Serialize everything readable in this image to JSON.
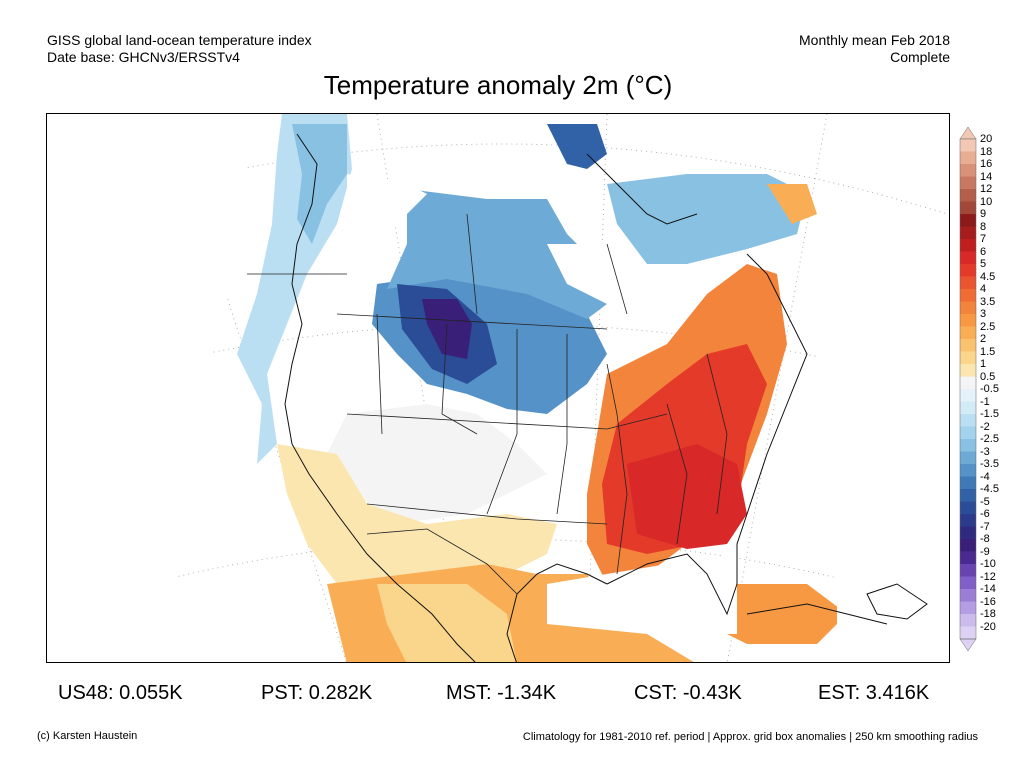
{
  "header": {
    "left_line1": "GISS global land-ocean temperature index",
    "left_line2": "Date base: GHCNv3/ERSSTv4",
    "right_line1": "Monthly mean Feb 2018",
    "right_line2": "Complete"
  },
  "title": "Temperature anomaly 2m (°C)",
  "stats": [
    {
      "label": "US48: 0.055K"
    },
    {
      "label": "PST: 0.282K"
    },
    {
      "label": "MST: -1.34K"
    },
    {
      "label": "CST: -0.43K"
    },
    {
      "label": "EST: 3.416K"
    }
  ],
  "credit": "(c) Karsten Haustein",
  "footnote": "Climatology for 1981-2010 ref. period | Approx. grid box anomalies | 250 km smoothing radius",
  "colorbar": {
    "levels": [
      "20",
      "18",
      "16",
      "14",
      "12",
      "10",
      "9",
      "8",
      "7",
      "6",
      "5",
      "4.5",
      "4",
      "3.5",
      "3",
      "2.5",
      "2",
      "1.5",
      "1",
      "0.5",
      "-0.5",
      "-1",
      "-1.5",
      "-2",
      "-2.5",
      "-3",
      "-3.5",
      "-4",
      "-4.5",
      "-5",
      "-6",
      "-7",
      "-8",
      "-9",
      "-10",
      "-12",
      "-14",
      "-16",
      "-18",
      "-20"
    ],
    "colors": [
      "#f2c8b4",
      "#e8ad92",
      "#d99277",
      "#c87860",
      "#b45f4a",
      "#a14838",
      "#8c1a1a",
      "#a51d1d",
      "#c01f1f",
      "#d82828",
      "#e33a2a",
      "#ea5531",
      "#ef6d35",
      "#f3843b",
      "#f79942",
      "#f9ae55",
      "#fac26e",
      "#fad58c",
      "#fbe6b0",
      "#f4f4f4",
      "#e6f2f9",
      "#d3eaf7",
      "#bbdff2",
      "#a3d2ec",
      "#89c1e3",
      "#6eaad6",
      "#5592c8",
      "#4079b8",
      "#3162a7",
      "#2b4c96",
      "#2b3a8a",
      "#2f2a80",
      "#3a1f78",
      "#4a2a90",
      "#6844b0",
      "#8060c6",
      "#9a7ed6",
      "#b49de2",
      "#cbbcec",
      "#ddd2f4"
    ]
  },
  "map": {
    "colors": {
      "ocean": "#ffffff",
      "coast": "#111111",
      "borders": "#222222",
      "graticule": "#aaaaaa"
    }
  }
}
